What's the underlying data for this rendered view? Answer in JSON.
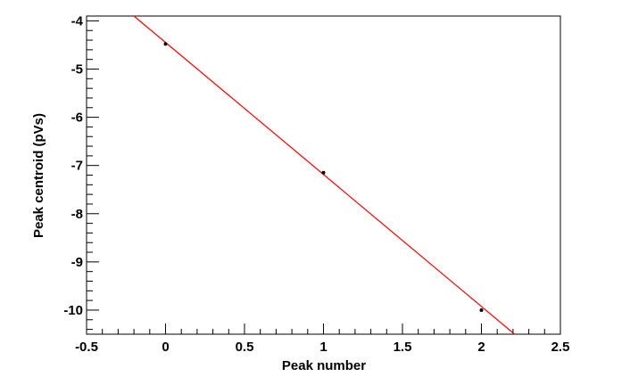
{
  "chart_data": {
    "type": "scatter",
    "x_label": "Peak number",
    "y_label": "Peak centroid (pVs)",
    "x": [
      0,
      1,
      2
    ],
    "values": [
      -4.48,
      -7.15,
      -10.0
    ],
    "color": "#000000",
    "fit": {
      "x": [
        -0.2,
        2.21
      ],
      "values": [
        -3.9,
        -10.5
      ],
      "color": "#ff0000"
    },
    "xlim": [
      -0.5,
      2.5
    ],
    "ylim": [
      -10.5,
      -3.9
    ],
    "xticks": [
      -0.5,
      0,
      0.5,
      1,
      1.5,
      2,
      2.5
    ],
    "yticks": [
      -10,
      -9,
      -8,
      -7,
      -6,
      -5,
      -4
    ]
  }
}
